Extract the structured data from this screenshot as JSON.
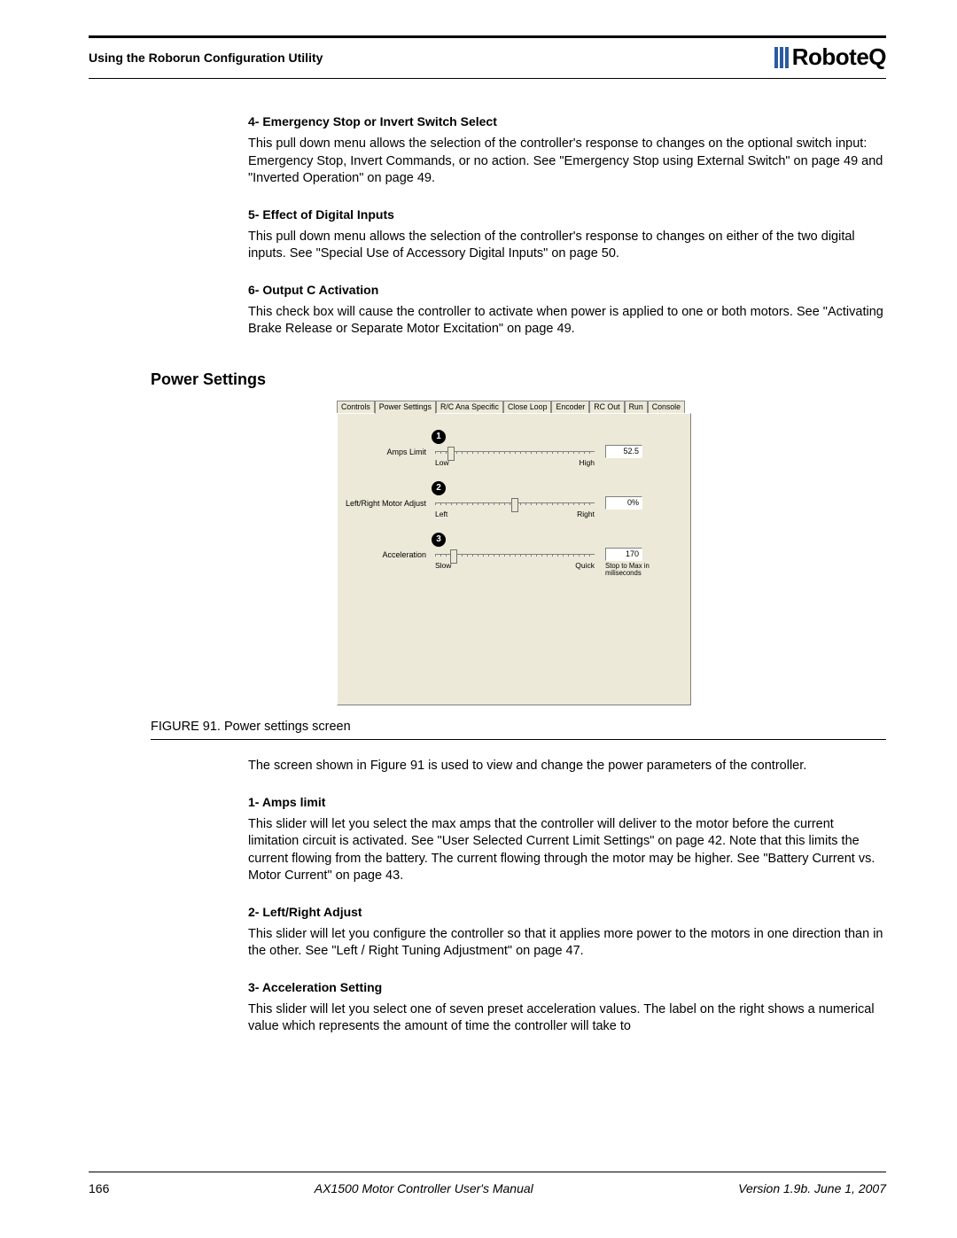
{
  "header": {
    "title": "Using the Roborun Configuration Utility",
    "logo_text": "RoboteQ"
  },
  "sections": {
    "s4": {
      "title": "4- Emergency Stop or Invert Switch Select",
      "body": "This pull down menu allows the selection of the controller's response to changes on the optional switch input: Emergency Stop, Invert Commands, or no action. See \"Emergency Stop using External Switch\" on page 49 and \"Inverted Operation\" on page 49."
    },
    "s5": {
      "title": "5- Effect of Digital Inputs",
      "body": "This pull down menu allows the selection of the controller's response to changes on either of the two digital inputs. See \"Special Use of Accessory Digital Inputs\" on page 50."
    },
    "s6": {
      "title": "6- Output C Activation",
      "body": "This check box will cause the controller to activate when power is applied to one or both motors. See \"Activating Brake Release or Separate Motor Excitation\" on page 49."
    }
  },
  "power_settings_heading": "Power Settings",
  "ui": {
    "tabs": [
      "Controls",
      "Power Settings",
      "R/C Ana Specific",
      "Close Loop",
      "Encoder",
      "RC Out",
      "Run",
      "Console"
    ],
    "active_tab_index": 1,
    "rows": [
      {
        "badge": "1",
        "label": "Amps Limit",
        "low": "Low",
        "high": "High",
        "value": "52.5",
        "thumb_pct": 8,
        "sub": ""
      },
      {
        "badge": "2",
        "label": "Left/Right Motor Adjust",
        "low": "Left",
        "high": "Right",
        "value": "0%",
        "thumb_pct": 50,
        "sub": ""
      },
      {
        "badge": "3",
        "label": "Acceleration",
        "low": "Slow",
        "high": "Quick",
        "value": "170",
        "thumb_pct": 10,
        "sub": "Stop to Max in miliseconds"
      }
    ],
    "panel_bg": "#ece9d8"
  },
  "figure": {
    "caption": "FIGURE 91.  Power settings screen",
    "body": "The screen shown in Figure 91 is used to view and change the power parameters of the controller."
  },
  "power_items": {
    "p1": {
      "title": "1- Amps limit",
      "body": "This slider will let you select the max amps that the controller will deliver to the motor before the current limitation circuit is activated. See \"User Selected Current Limit Settings\" on page 42. Note that this limits the current flowing from the battery. The current flowing through the motor may be higher. See \"Battery Current vs. Motor Current\" on page 43."
    },
    "p2": {
      "title": "2- Left/Right Adjust",
      "body": "This slider will let you configure the controller so that it applies more power to the motors in one direction than in the other. See \"Left / Right Tuning Adjustment\" on page 47."
    },
    "p3": {
      "title": "3- Acceleration Setting",
      "body": "This slider will let you select one of seven preset acceleration values. The label on the right shows a numerical value which represents the amount of time the controller will take to"
    }
  },
  "footer": {
    "page": "166",
    "center": "AX1500 Motor Controller User's Manual",
    "right": "Version 1.9b. June 1, 2007"
  }
}
